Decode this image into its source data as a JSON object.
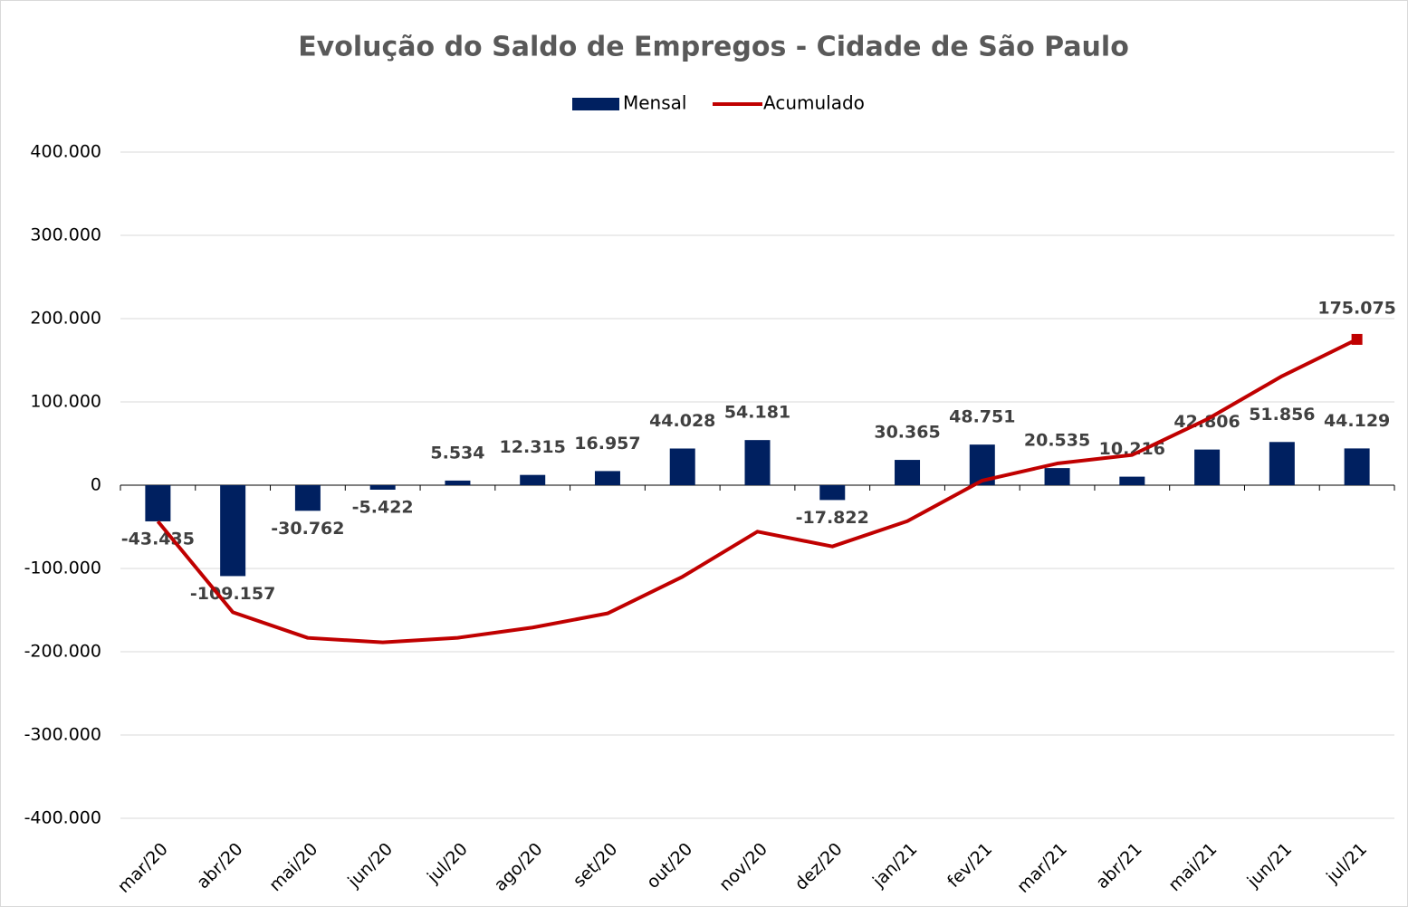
{
  "chart_data": {
    "type": "bar_line",
    "title": "Evolução do Saldo de Empregos - Cidade de São Paulo",
    "categories": [
      "mar/20",
      "abr/20",
      "mai/20",
      "jun/20",
      "jul/20",
      "ago/20",
      "set/20",
      "out/20",
      "nov/20",
      "dez/20",
      "jan/21",
      "fev/21",
      "mar/21",
      "abr/21",
      "mai/21",
      "jun/21",
      "jul/21"
    ],
    "series": [
      {
        "name": "Mensal",
        "type": "bar",
        "color": "#002060",
        "values": [
          -43435,
          -109157,
          -30762,
          -5422,
          5534,
          12315,
          16957,
          44028,
          54181,
          -17822,
          30365,
          48751,
          20535,
          10216,
          42806,
          51856,
          44129
        ],
        "value_labels": [
          "-43.435",
          "-109.157",
          "-30.762",
          "-5.422",
          "5.534",
          "12.315",
          "16.957",
          "44.028",
          "54.181",
          "-17.822",
          "30.365",
          "48.751",
          "20.535",
          "10.216",
          "42.806",
          "51.856",
          "44.129"
        ]
      },
      {
        "name": "Acumulado",
        "type": "line",
        "color": "#C00000",
        "values": [
          -43435,
          -152592,
          -183354,
          -188776,
          -183242,
          -170927,
          -153970,
          -109942,
          -55761,
          -73583,
          -43218,
          5533,
          26068,
          36284,
          79090,
          130946,
          175075
        ],
        "value_labels": [
          null,
          null,
          null,
          null,
          null,
          null,
          null,
          null,
          null,
          null,
          null,
          null,
          null,
          null,
          null,
          null,
          "175.075"
        ]
      }
    ],
    "ylim": [
      -400000,
      400000
    ],
    "yticks": [
      {
        "value": 400000,
        "label": "400.000"
      },
      {
        "value": 300000,
        "label": "300.000"
      },
      {
        "value": 200000,
        "label": "200.000"
      },
      {
        "value": 100000,
        "label": "100.000"
      },
      0,
      {
        "value": -100000,
        "label": "-100.000"
      },
      {
        "value": -200000,
        "label": "-200.000"
      },
      {
        "value": -300000,
        "label": "-300.000"
      },
      {
        "value": -400000,
        "label": "-400.000"
      }
    ],
    "grid": true,
    "legend": "top"
  }
}
